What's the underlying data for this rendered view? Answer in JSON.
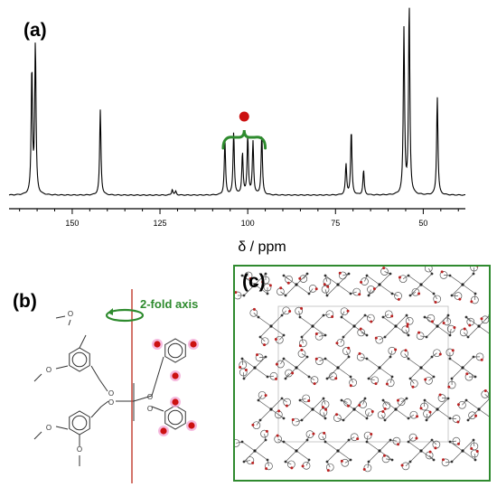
{
  "panels": {
    "a": {
      "label": "(a)"
    },
    "b": {
      "label": "(b)",
      "axis_label": "2-fold axis"
    },
    "c": {
      "label": "(c)"
    }
  },
  "chart_data": {
    "type": "line",
    "title": "",
    "xlabel": "δ / ppm",
    "ylabel": "",
    "x_direction": "reversed",
    "xlim": [
      168,
      38
    ],
    "x_ticks": [
      150,
      125,
      100,
      75,
      50
    ],
    "grid": false,
    "series": [
      {
        "peaks": [
          {
            "ppm": 161.5,
            "height": 0.66
          },
          {
            "ppm": 160.5,
            "height": 0.79
          },
          {
            "ppm": 142.0,
            "height": 0.45
          },
          {
            "ppm": 121.5,
            "height": 0.03
          },
          {
            "ppm": 120.5,
            "height": 0.02
          },
          {
            "ppm": 106.5,
            "height": 0.28
          },
          {
            "ppm": 104.0,
            "height": 0.33
          },
          {
            "ppm": 101.5,
            "height": 0.22
          },
          {
            "ppm": 100.0,
            "height": 0.31
          },
          {
            "ppm": 98.5,
            "height": 0.28
          },
          {
            "ppm": 96.0,
            "height": 0.32
          },
          {
            "ppm": 72.0,
            "height": 0.16
          },
          {
            "ppm": 70.5,
            "height": 0.34
          },
          {
            "ppm": 67.0,
            "height": 0.13
          },
          {
            "ppm": 55.5,
            "height": 0.87
          },
          {
            "ppm": 54.0,
            "height": 1.0
          },
          {
            "ppm": 46.0,
            "height": 0.52
          }
        ]
      }
    ],
    "annotation": {
      "type": "brace",
      "from_ppm": 107,
      "to_ppm": 95,
      "marker": "red-dot",
      "color": "#2e8b2e"
    }
  },
  "colors": {
    "brace": "#2e8b2e",
    "axis_arrow": "#2e8b2e",
    "axis_line": "#c0392b",
    "red_dot": "#cc1111",
    "pink_highlight": "#f2a9d6",
    "box_border": "#2f8a2f"
  }
}
